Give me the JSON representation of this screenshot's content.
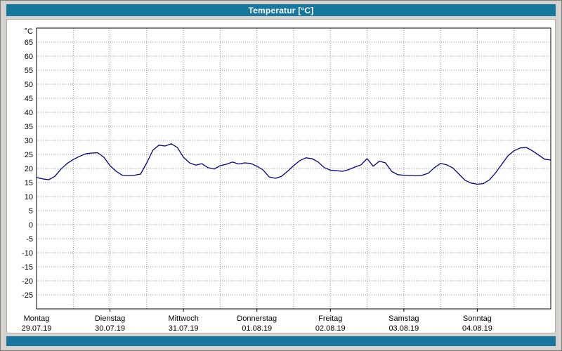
{
  "window": {
    "title": "Temperatur [°C]",
    "titlebar_color": "#17779f",
    "background_color": "#d6d3ce"
  },
  "chart_data": {
    "type": "line",
    "title": "Temperatur [°C]",
    "series_name": "Temperatur",
    "line_color": "#00007f",
    "grid_color": "#8c8c8c",
    "y_unit_label": "°C",
    "y_range": [
      -30,
      70
    ],
    "y_tick_labels": [
      65,
      60,
      55,
      50,
      45,
      40,
      35,
      30,
      25,
      20,
      15,
      10,
      5,
      0,
      -5,
      -10,
      -15,
      -20,
      -25
    ],
    "y_tick_step": 5,
    "grid": true,
    "x_days": [
      {
        "name": "Montag",
        "date": "29.07.19"
      },
      {
        "name": "Dienstag",
        "date": "30.07.19"
      },
      {
        "name": "Mittwoch",
        "date": "31.07.19"
      },
      {
        "name": "Donnerstag",
        "date": "01.08.19"
      },
      {
        "name": "Freitag",
        "date": "02.08.19"
      },
      {
        "name": "Samstag",
        "date": "03.08.19"
      },
      {
        "name": "Sonntag",
        "date": "04.08.19"
      }
    ],
    "total_hours": 168,
    "sample_interval_hours": 2,
    "values": [
      16.8,
      16.3,
      16.0,
      17.2,
      19.8,
      21.8,
      23.2,
      24.3,
      25.2,
      25.5,
      25.6,
      24.0,
      21.0,
      19.0,
      17.6,
      17.4,
      17.6,
      18.0,
      22.0,
      26.5,
      28.3,
      28.0,
      28.8,
      27.5,
      24.0,
      22.0,
      21.2,
      21.7,
      20.3,
      19.8,
      21.0,
      21.5,
      22.3,
      21.6,
      22.0,
      21.8,
      20.8,
      19.5,
      17.0,
      16.5,
      17.2,
      19.0,
      21.0,
      22.8,
      23.8,
      23.5,
      22.3,
      20.3,
      19.4,
      19.2,
      19.0,
      19.6,
      20.5,
      21.3,
      23.5,
      20.8,
      22.6,
      22.0,
      19.0,
      17.8,
      17.6,
      17.5,
      17.4,
      17.6,
      18.3,
      20.3,
      21.8,
      21.3,
      20.2,
      18.0,
      15.8,
      14.8,
      14.4,
      14.6,
      16.0,
      18.5,
      21.5,
      24.5,
      26.3,
      27.3,
      27.5,
      26.3,
      24.8,
      23.3,
      23.0
    ]
  }
}
